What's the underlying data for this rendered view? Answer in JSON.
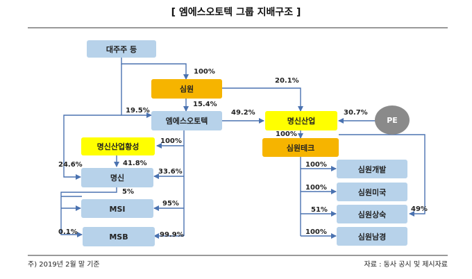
{
  "title": "[ 엠에스오토텍 그룹 지배구조 ]",
  "footnote_left": "주) 2019년 2월 말 기준",
  "footnote_right": "자료 : 동사 공시 및 제시자료",
  "colors": {
    "entity": "#b7d2ea",
    "parent": "#f6b400",
    "highlight": "#ffff00",
    "pe": "#8a8a8a",
    "line": "#4a72b0"
  },
  "entities": {
    "major_shareholders": "대주주 등",
    "simwon": "심원",
    "ms_autotech": "엠에스오토텍",
    "myungshin_industry": "명신산업",
    "pe": "PE",
    "simwon_tech": "심원테크",
    "myungshin_hwangseong": "명신산업황성",
    "myungshin": "명신",
    "msi": "MSI",
    "msb": "MSB",
    "simwon_dev": "심원개발",
    "simwon_us": "심원미국",
    "simwon_sangsuk": "심원상숙",
    "simwon_namgyeong": "심원남경"
  },
  "stakes": {
    "major_to_simwon": "100%",
    "simwon_to_msautotech": "15.4%",
    "major_to_msautotech": "19.5%",
    "simwon_to_myungshin_industry": "20.1%",
    "msautotech_to_myungshin_industry": "49.2%",
    "pe_to_myungshin_industry": "30.7%",
    "myungshin_industry_to_simwon_tech": "100%",
    "msautotech_to_hwangseong": "100%",
    "hwangseong_to_myungshin": "41.8%",
    "major_to_myungshin": "24.6%",
    "msautotech_to_myungshin": "33.6%",
    "myungshin_to_msi": "5%",
    "msautotech_to_msi": "95%",
    "myungshin_to_msb": "0.1%",
    "msautotech_to_msb": "99.9%",
    "simwontech_to_dev": "100%",
    "simwontech_to_us": "100%",
    "simwontech_to_sangsuk": "51%",
    "simwontech_to_namgyeong": "100%",
    "myungshin_industry_to_sangsuk": "49%"
  }
}
